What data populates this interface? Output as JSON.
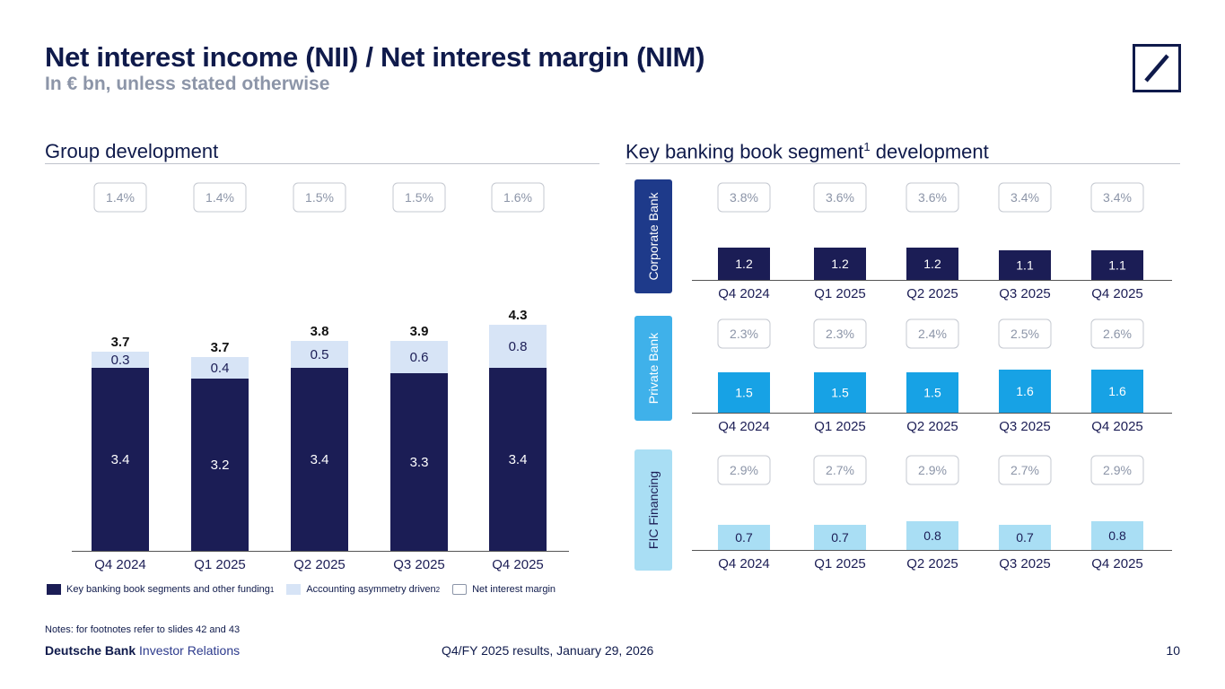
{
  "header": {
    "title": "Net interest income (NII) / Net interest margin (NIM)",
    "subtitle": "In € bn, unless stated otherwise"
  },
  "sections": {
    "left": {
      "title": "Group development"
    },
    "right": {
      "title": "Key banking book segment",
      "sup": "1",
      "title_suffix": " development"
    }
  },
  "colors": {
    "navy": "#1b1d55",
    "light_blue": "#d7e4f6",
    "private_bank": "#17a2e5",
    "fic": "#a9def4",
    "corporate_label_bg": "#1e3a8a",
    "private_label_bg": "#3fb1ea",
    "fic_label_bg": "#a9def4",
    "nim_text": "#8c95a8",
    "nim_border": "#c4c8d0"
  },
  "chart_data": [
    {
      "type": "bar",
      "title": "Group development",
      "stacked": true,
      "categories": [
        "Q4 2024",
        "Q1 2025",
        "Q2 2025",
        "Q3 2025",
        "Q4 2025"
      ],
      "series": [
        {
          "name": "Key banking book segments and other funding",
          "values": [
            3.4,
            3.2,
            3.4,
            3.3,
            3.4
          ]
        },
        {
          "name": "Accounting asymmetry driven",
          "values": [
            0.3,
            0.4,
            0.5,
            0.6,
            0.8
          ]
        }
      ],
      "totals": [
        3.7,
        3.7,
        3.8,
        3.9,
        4.3
      ],
      "nim": [
        "1.4%",
        "1.4%",
        "1.5%",
        "1.5%",
        "1.6%"
      ],
      "ylim": [
        0,
        4.5
      ]
    },
    {
      "type": "bar",
      "title": "Corporate Bank",
      "categories": [
        "Q4 2024",
        "Q1 2025",
        "Q2 2025",
        "Q3 2025",
        "Q4 2025"
      ],
      "values": [
        1.2,
        1.2,
        1.2,
        1.1,
        1.1
      ],
      "nim": [
        "3.8%",
        "3.6%",
        "3.6%",
        "3.4%",
        "3.4%"
      ]
    },
    {
      "type": "bar",
      "title": "Private Bank",
      "categories": [
        "Q4 2024",
        "Q1 2025",
        "Q2 2025",
        "Q3 2025",
        "Q4 2025"
      ],
      "values": [
        1.5,
        1.5,
        1.5,
        1.6,
        1.6
      ],
      "nim": [
        "2.3%",
        "2.3%",
        "2.4%",
        "2.5%",
        "2.6%"
      ]
    },
    {
      "type": "bar",
      "title": "FIC Financing",
      "categories": [
        "Q4 2024",
        "Q1 2025",
        "Q2 2025",
        "Q3 2025",
        "Q4 2025"
      ],
      "values": [
        0.7,
        0.7,
        0.8,
        0.7,
        0.8
      ],
      "nim": [
        "2.9%",
        "2.7%",
        "2.9%",
        "2.7%",
        "2.9%"
      ]
    }
  ],
  "legend": {
    "items": [
      {
        "label": "Key banking book segments and other funding",
        "sup": "1"
      },
      {
        "label": "Accounting asymmetry driven",
        "sup": "2"
      },
      {
        "label": "Net interest margin",
        "sup": ""
      }
    ]
  },
  "notes": "Notes: for footnotes refer to slides 42 and 43",
  "footer": {
    "brand_bold": "Deutsche Bank",
    "brand_rest": "Investor Relations",
    "center": "Q4/FY 2025 results, January 29, 2026",
    "page": "10"
  }
}
